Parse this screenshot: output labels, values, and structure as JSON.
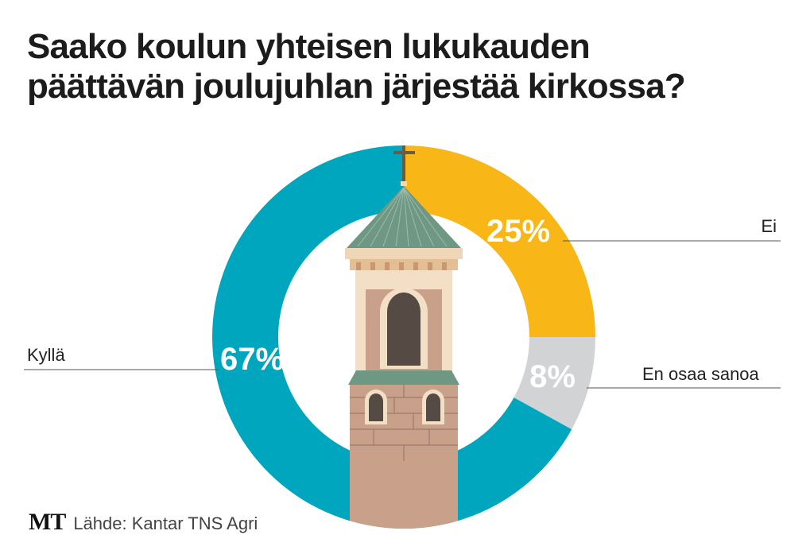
{
  "title_lines": [
    "Saako koulun yhteisen lukukauden",
    "päättävän joulujuhlan järjestää kirkossa?"
  ],
  "chart_data": {
    "type": "pie",
    "donut": true,
    "title": "Saako koulun yhteisen lukukauden päättävän joulujuhlan järjestää kirkossa?",
    "start": "top, clockwise",
    "slices": [
      {
        "label": "Ei",
        "value": 25,
        "value_label": "25%",
        "color": "#f8b617"
      },
      {
        "label": "En osaa sanoa",
        "value": 8,
        "value_label": "8%",
        "color": "#d1d3d4"
      },
      {
        "label": "Kyllä",
        "value": 67,
        "value_label": "67%",
        "color": "#00a6bd"
      }
    ]
  },
  "footer": {
    "logo": "MT",
    "source": "Lähde: Kantar TNS Agri"
  }
}
